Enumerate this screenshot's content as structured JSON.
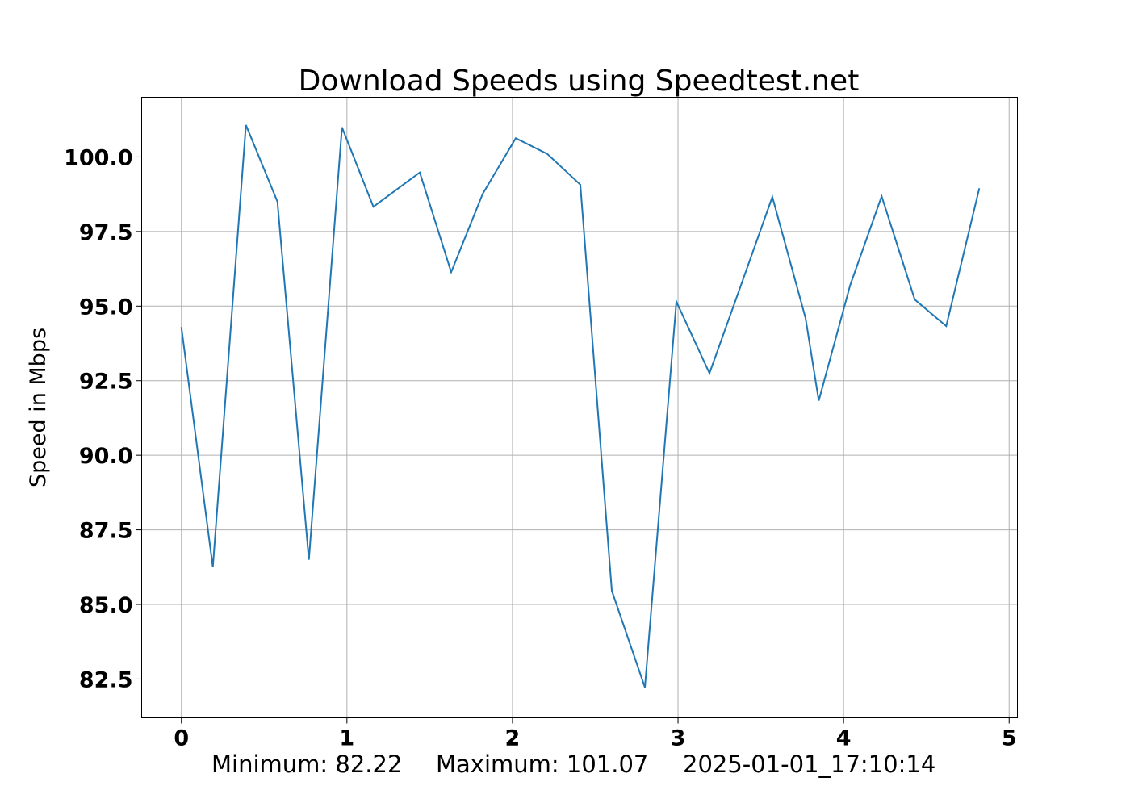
{
  "chart_data": {
    "type": "line",
    "title": "Download Speeds using Speedtest.net",
    "xlabel": "",
    "ylabel": "Speed in Mbps",
    "xlim": [
      -0.24,
      5.05
    ],
    "ylim": [
      81.2,
      102.0
    ],
    "xticks": [
      0,
      1,
      2,
      3,
      4,
      5
    ],
    "xtick_labels": [
      "0",
      "1",
      "2",
      "3",
      "4",
      "5"
    ],
    "yticks": [
      82.5,
      85.0,
      87.5,
      90.0,
      92.5,
      95.0,
      97.5,
      100.0
    ],
    "ytick_labels": [
      "82.5",
      "85.0",
      "87.5",
      "90.0",
      "92.5",
      "95.0",
      "97.5",
      "100.0"
    ],
    "grid": true,
    "line_color": "#1f77b4",
    "series": [
      {
        "x": [
          0.0,
          0.19,
          0.39,
          0.58,
          0.77,
          0.97,
          1.16,
          1.44,
          1.63,
          1.82,
          2.02,
          2.21,
          2.41,
          2.6,
          2.8,
          2.99,
          3.19,
          3.38,
          3.57,
          3.77,
          3.85,
          4.04,
          4.23,
          4.43,
          4.62,
          4.82
        ],
        "y": [
          94.3,
          86.25,
          101.07,
          98.5,
          86.5,
          100.99,
          98.33,
          99.48,
          96.14,
          98.76,
          100.63,
          100.1,
          99.07,
          85.46,
          82.22,
          95.15,
          92.75,
          95.7,
          98.66,
          94.6,
          91.83,
          95.7,
          98.68,
          95.22,
          94.33,
          98.95
        ]
      }
    ]
  },
  "footer": {
    "minimum": "Minimum: 82.22",
    "maximum": "Maximum: 101.07",
    "timestamp": "2025-01-01_17:10:14"
  }
}
